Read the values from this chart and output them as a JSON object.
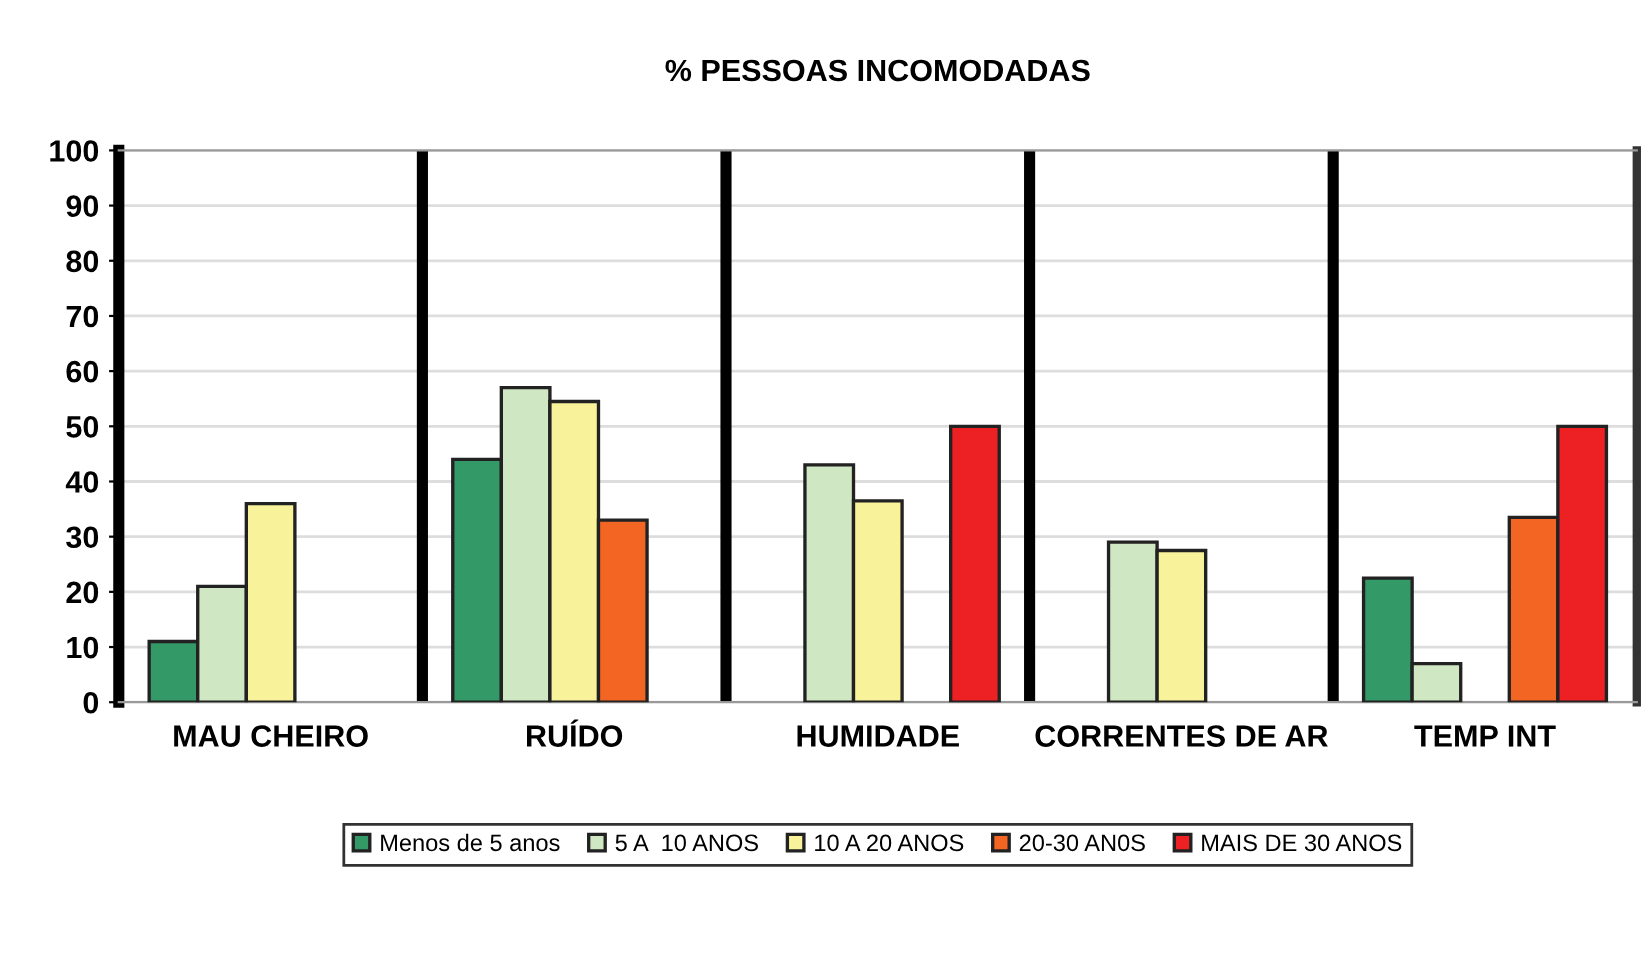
{
  "chart_data": {
    "type": "bar",
    "title": "% PESSOAS INCOMODADAS",
    "categories": [
      "MAU CHEIRO",
      "RUÍDO",
      "HUMIDADE",
      "CORRENTES DE AR",
      "TEMP INT"
    ],
    "series": [
      {
        "name": "Menos de 5 anos",
        "color": "#339966",
        "values": [
          11,
          44,
          null,
          null,
          22.5
        ]
      },
      {
        "name": "5 A  10 ANOS",
        "color": "#d0e7c3",
        "values": [
          21,
          57,
          43,
          29,
          7
        ]
      },
      {
        "name": "10 A 20 ANOS",
        "color": "#f8f39a",
        "values": [
          36,
          54.5,
          36.5,
          27.5,
          null
        ]
      },
      {
        "name": "20-30 AN0S",
        "color": "#f26522",
        "values": [
          null,
          33,
          null,
          null,
          33.5
        ]
      },
      {
        "name": "MAIS DE 30 ANOS",
        "color": "#ed2024",
        "values": [
          null,
          null,
          50,
          null,
          50
        ]
      }
    ],
    "ylim": [
      0,
      100
    ],
    "yticks": [
      0,
      10,
      20,
      30,
      40,
      50,
      60,
      70,
      80,
      90,
      100
    ],
    "grid": true,
    "legend": "bottom"
  }
}
